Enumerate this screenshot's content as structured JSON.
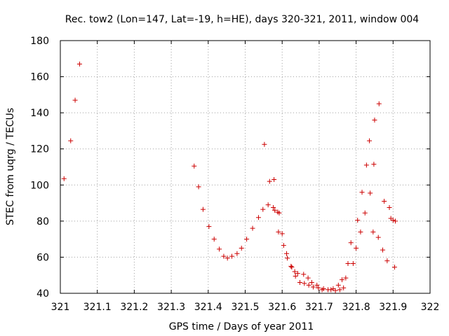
{
  "chart_data": {
    "type": "scatter",
    "title": "Rec. tow2 (Lon=147, Lat=-19, h=HE), days 320-321, 2011, window 004",
    "xlabel": "GPS time / Days of year 2011",
    "ylabel": "STEC from uqrg / TECUs",
    "xlim": [
      321,
      322
    ],
    "ylim": [
      40,
      180
    ],
    "x_ticks": [
      "321",
      "321.1",
      "321.2",
      "321.3",
      "321.4",
      "321.5",
      "321.6",
      "321.7",
      "321.8",
      "321.9",
      "322"
    ],
    "y_ticks": [
      "40",
      "60",
      "80",
      "100",
      "120",
      "140",
      "160",
      "180"
    ],
    "grid": true,
    "marker": "+",
    "color": "#cc0000",
    "points": [
      [
        321.01,
        103.5
      ],
      [
        321.028,
        124.5
      ],
      [
        321.04,
        147
      ],
      [
        321.052,
        167
      ],
      [
        321.362,
        110.5
      ],
      [
        321.374,
        99
      ],
      [
        321.386,
        86.5
      ],
      [
        321.402,
        77
      ],
      [
        321.416,
        70
      ],
      [
        321.43,
        64.5
      ],
      [
        321.442,
        60.5
      ],
      [
        321.452,
        59.5
      ],
      [
        321.464,
        60.5
      ],
      [
        321.478,
        62
      ],
      [
        321.49,
        65
      ],
      [
        321.504,
        70
      ],
      [
        321.52,
        76
      ],
      [
        321.536,
        82
      ],
      [
        321.548,
        86.5
      ],
      [
        321.552,
        122.5
      ],
      [
        321.562,
        89
      ],
      [
        321.566,
        102
      ],
      [
        321.576,
        87.5
      ],
      [
        321.578,
        103
      ],
      [
        321.58,
        86
      ],
      [
        321.588,
        85
      ],
      [
        321.59,
        74
      ],
      [
        321.592,
        84.5
      ],
      [
        321.6,
        73
      ],
      [
        321.604,
        66.5
      ],
      [
        321.612,
        62
      ],
      [
        321.614,
        59.5
      ],
      [
        321.624,
        55
      ],
      [
        321.626,
        54.5
      ],
      [
        321.634,
        52
      ],
      [
        321.636,
        49.5
      ],
      [
        321.642,
        51
      ],
      [
        321.648,
        46
      ],
      [
        321.658,
        50.5
      ],
      [
        321.66,
        45.5
      ],
      [
        321.67,
        48.5
      ],
      [
        321.672,
        44.5
      ],
      [
        321.68,
        46
      ],
      [
        321.684,
        43.5
      ],
      [
        321.694,
        44.5
      ],
      [
        321.698,
        43
      ],
      [
        321.708,
        42
      ],
      [
        321.712,
        42.5
      ],
      [
        321.724,
        42
      ],
      [
        321.732,
        42
      ],
      [
        321.738,
        42.5
      ],
      [
        321.744,
        41.5
      ],
      [
        321.752,
        44.5
      ],
      [
        321.756,
        42
      ],
      [
        321.762,
        47.5
      ],
      [
        321.766,
        43
      ],
      [
        321.772,
        48.5
      ],
      [
        321.778,
        56.5
      ],
      [
        321.786,
        68
      ],
      [
        321.792,
        56.5
      ],
      [
        321.8,
        65
      ],
      [
        321.804,
        80.5
      ],
      [
        321.812,
        74
      ],
      [
        321.816,
        96
      ],
      [
        321.824,
        84.5
      ],
      [
        321.828,
        111
      ],
      [
        321.836,
        124.5
      ],
      [
        321.838,
        95.5
      ],
      [
        321.846,
        74
      ],
      [
        321.848,
        111.5
      ],
      [
        321.85,
        136
      ],
      [
        321.86,
        71
      ],
      [
        321.862,
        145
      ],
      [
        321.872,
        64
      ],
      [
        321.876,
        91
      ],
      [
        321.884,
        58
      ],
      [
        321.89,
        87.5
      ],
      [
        321.894,
        81.5
      ],
      [
        321.9,
        80.5
      ],
      [
        321.904,
        54.5
      ],
      [
        321.906,
        80
      ]
    ]
  }
}
